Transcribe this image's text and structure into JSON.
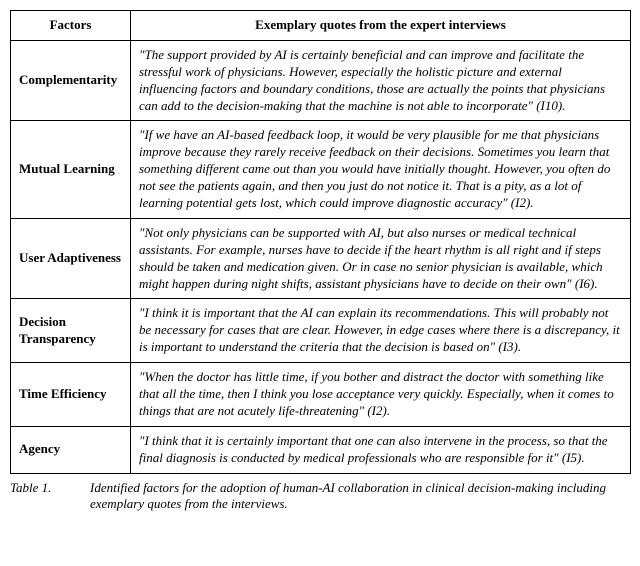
{
  "table": {
    "headers": {
      "factors": "Factors",
      "quotes": "Exemplary quotes from the expert interviews"
    },
    "rows": [
      {
        "factor": "Complementarity",
        "quote": "\"The support provided by AI is certainly beneficial and can improve and facilitate the stressful work of physicians. However, especially the holistic picture and external influencing factors and boundary conditions, those are actually the points that physicians can add to the decision-making that the machine is not able to incorporate\" (I10)."
      },
      {
        "factor": "Mutual Learning",
        "quote": "\"If we have an AI-based feedback loop, it would be very plausible for me that physicians improve because they rarely receive feedback on their decisions. Sometimes you learn that something different came out than you would have initially thought. However, you often do not see the patients again, and then you just do not notice it. That is a pity, as a lot of learning potential gets lost, which could improve diagnostic accuracy\" (I2)."
      },
      {
        "factor": "User Adaptiveness",
        "quote": "\"Not only physicians can be supported with AI, but also nurses or medical technical assistants. For example, nurses have to decide if the heart rhythm is all right and if steps should be taken and medication given. Or in case no senior physician is available, which might happen during night shifts, assistant physicians have to decide on their own\" (I6)."
      },
      {
        "factor": "Decision Transparency",
        "quote": "\"I think it is important that the AI can explain its recommendations. This will probably not be necessary for cases that are clear. However, in edge cases where there is a discrepancy, it is important to understand the criteria that the decision is based on\" (I3)."
      },
      {
        "factor": "Time Efficiency",
        "quote": "\"When the doctor has little time, if you bother and distract the doctor with something like that all the time, then I think you lose acceptance very quickly. Especially, when it comes to things that are not acutely life-threatening\" (I2)."
      },
      {
        "factor": "Agency",
        "quote": "\"I think that it is certainly important that one can also intervene in the process, so that the final diagnosis is conducted by medical professionals who are responsible for it\" (I5)."
      }
    ]
  },
  "caption": {
    "label": "Table 1.",
    "text": "Identified factors for the adoption of human-AI collaboration in clinical decision-making including exemplary quotes from the interviews."
  }
}
